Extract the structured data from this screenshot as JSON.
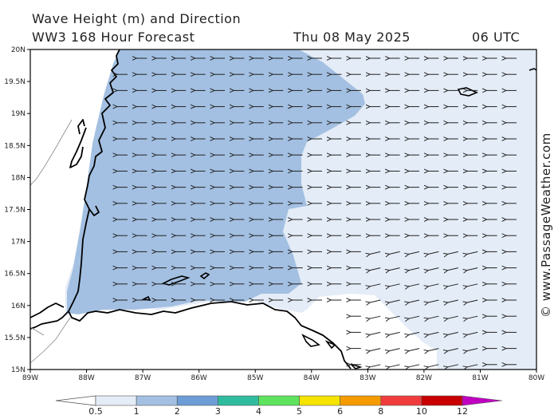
{
  "header": {
    "title": "Wave Height (m) and Direction",
    "subtitle": "WW3 168 Hour Forecast",
    "date": "Thu 08 May 2025",
    "time": "06 UTC"
  },
  "credit": "© www.PassageWeather.com",
  "map": {
    "lat_labels": [
      "20N",
      "19.5N",
      "19N",
      "18.5N",
      "18N",
      "17.5N",
      "17N",
      "16.5N",
      "16N",
      "15.5N",
      "15N"
    ],
    "lon_labels": [
      "89W",
      "88W",
      "87W",
      "86W",
      "85W",
      "84W",
      "83W",
      "82W",
      "81W",
      "80W"
    ],
    "wave_direction": "westward"
  },
  "colorbar": {
    "labels": [
      "0.5",
      "1",
      "2",
      "3",
      "4",
      "5",
      "6",
      "8",
      "10",
      "12"
    ],
    "colors": [
      "#e4ecf7",
      "#a3c0e2",
      "#6d9dd6",
      "#2fbc9e",
      "#5ee35e",
      "#f5e400",
      "#f59b00",
      "#f03c3c",
      "#c80000",
      "#c000c0"
    ]
  }
}
